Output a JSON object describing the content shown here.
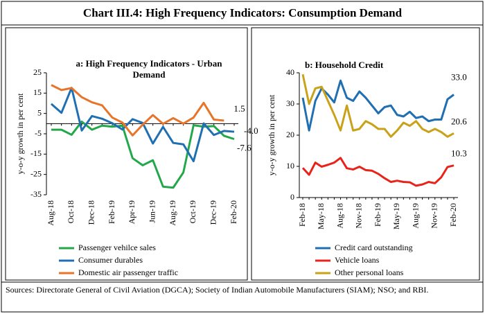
{
  "title": "Chart III.4: High Frequency Indicators: Consumption Demand",
  "chart_data": [
    {
      "type": "line",
      "title": "a: High Frequency Indicators - Urban Demand",
      "y_label": "y-o-y growth in per cent",
      "categories": [
        "Aug-18",
        null,
        "Oct-18",
        null,
        "Dec-18",
        null,
        "Feb-19",
        null,
        "Apr-19",
        null,
        "Jun-19",
        null,
        "Aug-19",
        null,
        "Oct-19",
        null,
        "Dec-19",
        null,
        "Feb-20"
      ],
      "ylim": [
        -35,
        25
      ],
      "yticks": [
        -35,
        -25,
        -15,
        -5,
        5,
        15,
        25
      ],
      "legend": "bottom",
      "series": [
        {
          "name": "Passenger vehilce sales",
          "color": "#22a84b",
          "values": [
            -3,
            -3,
            -5.5,
            1,
            -3,
            -1,
            -1.5,
            -1,
            -17,
            -20.5,
            -18,
            -31,
            -31.5,
            -24,
            -0.8,
            -1.5,
            -1.2,
            -6,
            -7.6
          ],
          "value_labels": [
            null,
            null,
            null,
            null,
            null,
            null,
            null,
            null,
            null,
            null,
            null,
            null,
            null,
            null,
            null,
            null,
            null,
            null,
            "-7.6"
          ]
        },
        {
          "name": "Consumer durables",
          "color": "#1f6fb2",
          "values": [
            9.7,
            5.3,
            17.6,
            -3.4,
            3.7,
            2.4,
            0.2,
            -2.9,
            2.2,
            0.3,
            -9.8,
            -1.6,
            -9.5,
            -10.2,
            -18.5,
            0.1,
            -5.6,
            -3.6,
            -4
          ],
          "value_labels": [
            null,
            null,
            null,
            null,
            null,
            null,
            null,
            null,
            null,
            null,
            null,
            null,
            null,
            null,
            null,
            null,
            null,
            null,
            "-4.0"
          ]
        },
        {
          "name": "Domestic air passenger traffic",
          "color": "#e8742a",
          "values": [
            19,
            16.5,
            17.5,
            13,
            10.5,
            9,
            3,
            0.5,
            -5.8,
            -0.5,
            4.2,
            -0.1,
            2.7,
            0,
            3,
            10.2,
            2,
            1.5,
            null
          ],
          "value_labels": [
            null,
            null,
            null,
            null,
            null,
            null,
            null,
            null,
            null,
            null,
            null,
            null,
            null,
            null,
            null,
            null,
            null,
            "1.5",
            null
          ]
        }
      ]
    },
    {
      "type": "line",
      "title": "b: Household Credit",
      "y_label": "y-o-y growth in per cent",
      "categories": [
        "Feb-18",
        null,
        null,
        "May-18",
        null,
        null,
        "Aug-18",
        null,
        null,
        "Nov-18",
        null,
        null,
        "Feb-19",
        null,
        null,
        "May-19",
        null,
        null,
        "Aug-19",
        null,
        null,
        "Nov-19",
        null,
        null,
        "Feb-20"
      ],
      "ylim": [
        0,
        40
      ],
      "yticks": [
        0,
        10,
        20,
        30,
        40
      ],
      "legend": "bottom",
      "series": [
        {
          "name": "Credit card outstanding",
          "color": "#1f6fb2",
          "values": [
            32,
            21.5,
            31,
            35,
            33,
            30.5,
            37.5,
            32,
            31,
            34,
            32,
            29.5,
            27,
            29,
            29.5,
            26.5,
            26,
            27.5,
            25.5,
            26,
            24.5,
            25,
            25,
            31.5,
            33
          ],
          "value_labels": [
            null,
            null,
            null,
            null,
            null,
            null,
            null,
            null,
            null,
            null,
            null,
            null,
            null,
            null,
            null,
            null,
            null,
            null,
            null,
            null,
            null,
            null,
            null,
            null,
            "33.0"
          ]
        },
        {
          "name": "Vehicle loans",
          "color": "#e8231a",
          "values": [
            9.5,
            7.3,
            11.2,
            9.9,
            10.5,
            11.2,
            12.7,
            9.4,
            9,
            9.9,
            8.8,
            8.6,
            7.6,
            6.2,
            5,
            5.4,
            5,
            4.9,
            3.8,
            4.2,
            5,
            4.6,
            6.5,
            9.8,
            10.3
          ],
          "value_labels": [
            null,
            null,
            null,
            null,
            null,
            null,
            null,
            null,
            null,
            null,
            null,
            null,
            null,
            null,
            null,
            null,
            null,
            null,
            null,
            null,
            null,
            null,
            null,
            null,
            "10.3"
          ]
        },
        {
          "name": "Other personal loans",
          "color": "#c9a21a",
          "values": [
            39.5,
            30,
            35,
            35.5,
            31,
            26.5,
            21.5,
            29.5,
            21.5,
            22,
            24.5,
            23.5,
            22,
            22,
            19.5,
            21.5,
            24,
            23,
            24.5,
            22,
            21,
            22,
            21,
            19.5,
            20.6
          ],
          "value_labels": [
            null,
            null,
            null,
            null,
            null,
            null,
            null,
            null,
            null,
            null,
            null,
            null,
            null,
            null,
            null,
            null,
            null,
            null,
            null,
            null,
            null,
            null,
            null,
            null,
            "20.6"
          ]
        }
      ]
    }
  ],
  "sources": "Sources: Directorate General of Civil Aviation (DGCA); Society of Indian Automobile Manufacturers (SIAM); NSO; and RBI."
}
